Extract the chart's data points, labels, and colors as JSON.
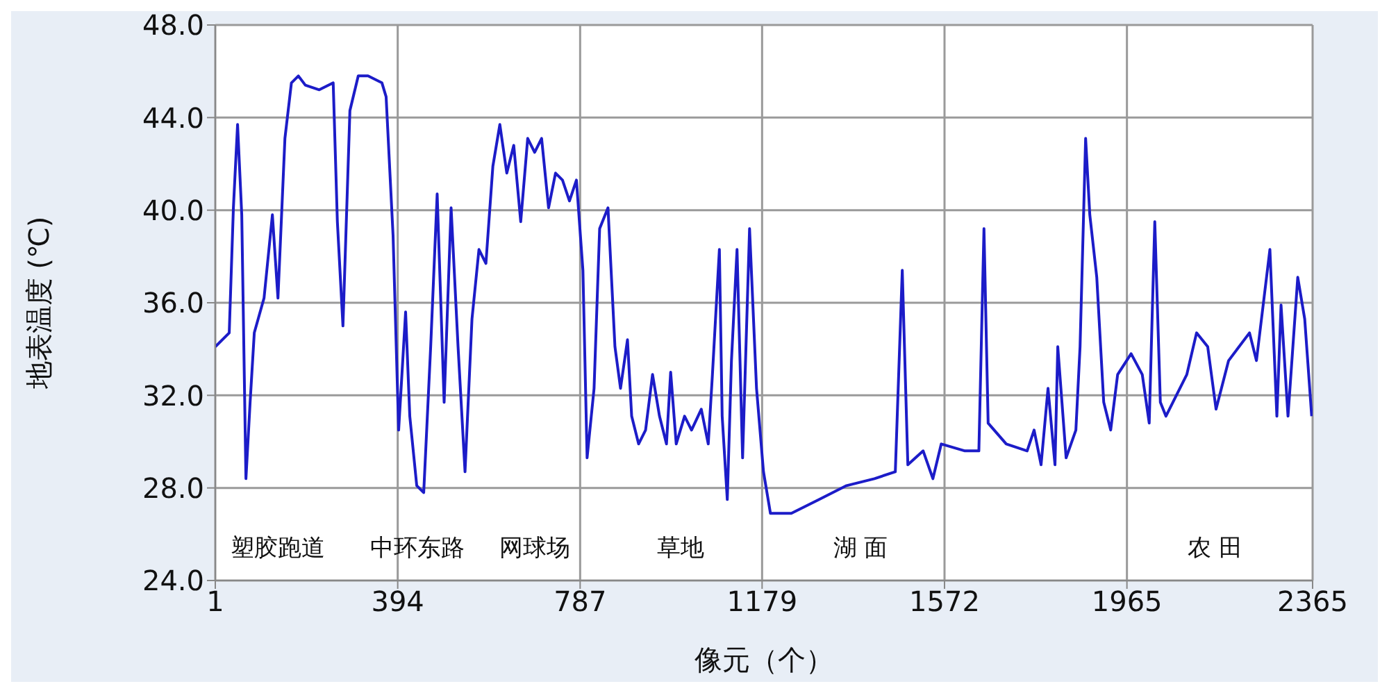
{
  "chart_data": {
    "type": "line",
    "xlabel": "像元（个）",
    "ylabel": "地表温度 (℃)",
    "x": [
      1,
      16,
      31,
      40,
      49,
      58,
      67,
      76,
      85,
      106,
      124,
      136,
      151,
      165,
      180,
      195,
      225,
      255,
      264,
      276,
      291,
      309,
      330,
      360,
      369,
      384,
      396,
      411,
      420,
      435,
      450,
      465,
      479,
      494,
      509,
      524,
      539,
      554,
      569,
      584,
      599,
      614,
      629,
      644,
      659,
      674,
      689,
      704,
      719,
      734,
      749,
      764,
      779,
      793,
      802,
      817,
      829,
      847,
      862,
      874,
      889,
      898,
      913,
      928,
      943,
      958,
      973,
      982,
      994,
      1012,
      1027,
      1048,
      1063,
      1072,
      1087,
      1093,
      1104,
      1113,
      1125,
      1137,
      1152,
      1167,
      1182,
      1197,
      1242,
      1302,
      1361,
      1421,
      1466,
      1481,
      1493,
      1526,
      1547,
      1565,
      1616,
      1646,
      1657,
      1666,
      1705,
      1750,
      1765,
      1780,
      1795,
      1810,
      1816,
      1834,
      1855,
      1864,
      1876,
      1885,
      1900,
      1915,
      1930,
      1945,
      1974,
      1998,
      2013,
      2025,
      2037,
      2049,
      2064,
      2094,
      2115,
      2139,
      2157,
      2184,
      2229,
      2244,
      2273,
      2288,
      2297,
      2312,
      2333,
      2348,
      2363
    ],
    "series": [
      {
        "color": "#1c1cc8",
        "values": [
          34.1,
          34.4,
          34.7,
          40.1,
          43.7,
          39.8,
          28.4,
          31.7,
          34.7,
          36.2,
          39.8,
          36.2,
          43.1,
          45.5,
          45.8,
          45.4,
          45.2,
          45.5,
          39.5,
          35.0,
          44.3,
          45.8,
          45.8,
          45.5,
          44.9,
          38.9,
          30.5,
          35.6,
          31.1,
          28.1,
          27.8,
          34.1,
          40.7,
          31.7,
          40.1,
          34.1,
          28.7,
          35.3,
          38.3,
          37.7,
          41.9,
          43.7,
          41.6,
          42.8,
          39.5,
          43.1,
          42.5,
          43.1,
          40.1,
          41.6,
          41.3,
          40.4,
          41.3,
          37.4,
          29.3,
          32.3,
          39.2,
          40.1,
          34.1,
          32.3,
          34.4,
          31.1,
          29.9,
          30.5,
          32.9,
          31.1,
          29.9,
          33.0,
          29.9,
          31.1,
          30.5,
          31.4,
          29.9,
          32.9,
          38.3,
          31.1,
          27.5,
          33.5,
          38.3,
          29.3,
          39.2,
          32.3,
          28.7,
          26.9,
          26.9,
          27.5,
          28.1,
          28.4,
          28.7,
          37.4,
          29.0,
          29.6,
          28.4,
          29.9,
          29.6,
          29.6,
          39.2,
          30.8,
          29.9,
          29.6,
          30.5,
          29.0,
          32.3,
          29.0,
          34.1,
          29.3,
          30.5,
          34.1,
          43.1,
          39.8,
          37.1,
          31.7,
          30.5,
          32.9,
          33.8,
          32.9,
          30.8,
          39.5,
          31.7,
          31.1,
          31.7,
          32.9,
          34.7,
          34.1,
          31.4,
          33.5,
          34.7,
          33.5,
          38.3,
          31.1,
          35.9,
          31.1,
          37.1,
          35.3,
          31.1
        ]
      }
    ],
    "xlim": [
      1,
      2365
    ],
    "xticks": [
      1,
      394,
      787,
      1179,
      1572,
      1965,
      2365
    ],
    "ylim": [
      24,
      48
    ],
    "yticks": [
      {
        "value": 24,
        "label": "24.0"
      },
      {
        "value": 28,
        "label": "28.0"
      },
      {
        "value": 32,
        "label": "32.0"
      },
      {
        "value": 36,
        "label": "36.0"
      },
      {
        "value": 40,
        "label": "40.0"
      },
      {
        "value": 44,
        "label": "44.0"
      },
      {
        "value": 48,
        "label": "48.0"
      }
    ],
    "grid": true,
    "line_style": "solid",
    "marker": "none",
    "annotations": [
      "塑胶跑道",
      "中环东路",
      "网球场",
      "草地",
      "湖 面",
      "农 田"
    ]
  }
}
